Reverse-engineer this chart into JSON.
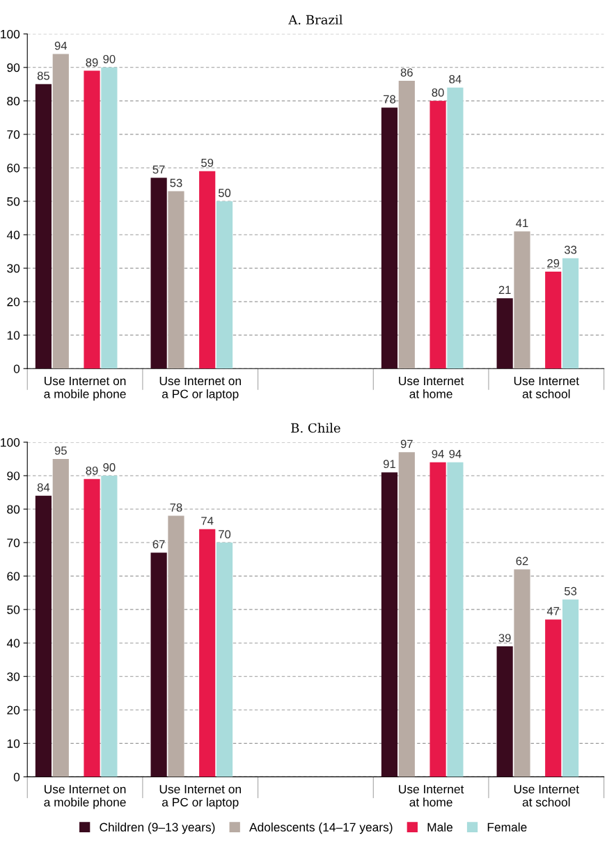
{
  "chart_data": [
    {
      "type": "bar",
      "title": "A. Brazil",
      "categories": [
        "Use Internet on\na mobile phone",
        "Use Internet on\na PC or laptop",
        null,
        "Use Internet\nat home",
        "Use Internet\nat school"
      ],
      "series": [
        {
          "name": "Children (9–13 years)",
          "color": "#3a0a1e",
          "values": [
            85,
            57,
            null,
            78,
            21
          ]
        },
        {
          "name": "Adolescents (14–17 years)",
          "color": "#b8aba3",
          "values": [
            94,
            53,
            null,
            86,
            41
          ]
        },
        {
          "name": "Male",
          "color": "#e8194a",
          "values": [
            89,
            59,
            null,
            80,
            29
          ]
        },
        {
          "name": "Female",
          "color": "#a9dcdc",
          "values": [
            90,
            50,
            null,
            84,
            33
          ]
        }
      ],
      "ylim": [
        0,
        100
      ],
      "yticks": [
        0,
        10,
        20,
        30,
        40,
        50,
        60,
        70,
        80,
        90,
        100
      ],
      "grid": "y",
      "data_labels": true,
      "legend": "bottom"
    },
    {
      "type": "bar",
      "title": "B. Chile",
      "categories": [
        "Use Internet on\na mobile phone",
        "Use Internet on\na PC or laptop",
        null,
        "Use Internet\nat home",
        "Use Internet\nat school"
      ],
      "series": [
        {
          "color": "#3a0a1e",
          "values": [
            84,
            67,
            null,
            91,
            39
          ]
        },
        {
          "color": "#b8aba3",
          "values": [
            95,
            78,
            null,
            97,
            62
          ]
        },
        {
          "color": "#e8194a",
          "values": [
            89,
            74,
            null,
            94,
            47
          ]
        },
        {
          "color": "#a9dcdc",
          "values": [
            90,
            70,
            null,
            94,
            53
          ]
        }
      ],
      "ylim": [
        0,
        100
      ],
      "yticks": [
        0,
        10,
        20,
        30,
        40,
        50,
        60,
        70,
        80,
        90,
        100
      ],
      "grid": "y",
      "data_labels": true
    }
  ]
}
